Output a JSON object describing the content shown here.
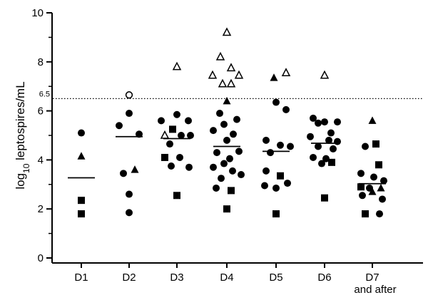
{
  "chart_data": {
    "type": "scatter",
    "title": "",
    "xlabel": "",
    "ylabel": {
      "prefix": "log",
      "subscript": "10",
      "suffix": " leptospires/mL"
    },
    "ylim": [
      0,
      10
    ],
    "yticks": [
      "0",
      "2",
      "4",
      "6",
      "8",
      "10"
    ],
    "categories": [
      "D1",
      "D2",
      "D3",
      "D4",
      "D5",
      "D6",
      "D7"
    ],
    "category_sublabels": [
      "",
      "",
      "",
      "",
      "",
      "",
      "and after"
    ],
    "reference_line": {
      "y": 6.5,
      "label": "6.5",
      "style": "dotted"
    },
    "marker_legend": {
      "circle-filled": "",
      "square-filled": "",
      "triangle-filled": "",
      "triangle-open": "",
      "circle-open": ""
    },
    "medians": [
      3.27,
      4.95,
      4.87,
      4.55,
      4.35,
      4.68,
      3.03
    ],
    "points": [
      {
        "cat": 0,
        "y": 5.1,
        "m": "circle-filled",
        "dx": 0
      },
      {
        "cat": 0,
        "y": 4.15,
        "m": "triangle-filled",
        "dx": 0
      },
      {
        "cat": 0,
        "y": 2.35,
        "m": "square-filled",
        "dx": 0
      },
      {
        "cat": 0,
        "y": 1.8,
        "m": "square-filled",
        "dx": 0
      },
      {
        "cat": 1,
        "y": 6.65,
        "m": "circle-open",
        "dx": 0
      },
      {
        "cat": 1,
        "y": 5.9,
        "m": "circle-filled",
        "dx": 0
      },
      {
        "cat": 1,
        "y": 5.4,
        "m": "circle-filled",
        "dx": -14
      },
      {
        "cat": 1,
        "y": 5.05,
        "m": "circle-filled",
        "dx": 14
      },
      {
        "cat": 1,
        "y": 3.6,
        "m": "triangle-filled",
        "dx": 8
      },
      {
        "cat": 1,
        "y": 3.45,
        "m": "circle-filled",
        "dx": -8
      },
      {
        "cat": 1,
        "y": 2.6,
        "m": "circle-filled",
        "dx": 0
      },
      {
        "cat": 1,
        "y": 1.85,
        "m": "circle-filled",
        "dx": 0
      },
      {
        "cat": 2,
        "y": 7.8,
        "m": "triangle-open",
        "dx": 0
      },
      {
        "cat": 2,
        "y": 5.85,
        "m": "circle-filled",
        "dx": 0
      },
      {
        "cat": 2,
        "y": 5.6,
        "m": "circle-filled",
        "dx": -22
      },
      {
        "cat": 2,
        "y": 5.6,
        "m": "circle-filled",
        "dx": 16
      },
      {
        "cat": 2,
        "y": 5.25,
        "m": "square-filled",
        "dx": -6
      },
      {
        "cat": 2,
        "y": 5.0,
        "m": "triangle-open",
        "dx": -17
      },
      {
        "cat": 2,
        "y": 5.0,
        "m": "circle-filled",
        "dx": 6
      },
      {
        "cat": 2,
        "y": 5.0,
        "m": "circle-filled",
        "dx": 19
      },
      {
        "cat": 2,
        "y": 4.65,
        "m": "circle-filled",
        "dx": -10
      },
      {
        "cat": 2,
        "y": 4.1,
        "m": "square-filled",
        "dx": -17
      },
      {
        "cat": 2,
        "y": 4.1,
        "m": "circle-filled",
        "dx": 4
      },
      {
        "cat": 2,
        "y": 3.75,
        "m": "circle-filled",
        "dx": -8
      },
      {
        "cat": 2,
        "y": 3.7,
        "m": "circle-filled",
        "dx": 17
      },
      {
        "cat": 2,
        "y": 2.55,
        "m": "square-filled",
        "dx": 0
      },
      {
        "cat": 3,
        "y": 9.2,
        "m": "triangle-open",
        "dx": 0
      },
      {
        "cat": 3,
        "y": 8.2,
        "m": "triangle-open",
        "dx": -9
      },
      {
        "cat": 3,
        "y": 7.75,
        "m": "triangle-open",
        "dx": 6
      },
      {
        "cat": 3,
        "y": 7.45,
        "m": "triangle-open",
        "dx": -20
      },
      {
        "cat": 3,
        "y": 7.45,
        "m": "triangle-open",
        "dx": 17
      },
      {
        "cat": 3,
        "y": 7.1,
        "m": "triangle-open",
        "dx": -6
      },
      {
        "cat": 3,
        "y": 7.1,
        "m": "triangle-open",
        "dx": 6
      },
      {
        "cat": 3,
        "y": 6.4,
        "m": "triangle-filled",
        "dx": 0
      },
      {
        "cat": 3,
        "y": 5.9,
        "m": "circle-filled",
        "dx": -10
      },
      {
        "cat": 3,
        "y": 5.65,
        "m": "circle-filled",
        "dx": 14
      },
      {
        "cat": 3,
        "y": 5.45,
        "m": "circle-filled",
        "dx": -4
      },
      {
        "cat": 3,
        "y": 5.2,
        "m": "circle-filled",
        "dx": -19
      },
      {
        "cat": 3,
        "y": 5.05,
        "m": "circle-filled",
        "dx": 9
      },
      {
        "cat": 3,
        "y": 4.8,
        "m": "circle-filled",
        "dx": 0
      },
      {
        "cat": 3,
        "y": 4.35,
        "m": "circle-filled",
        "dx": 17
      },
      {
        "cat": 3,
        "y": 4.3,
        "m": "circle-filled",
        "dx": -14
      },
      {
        "cat": 3,
        "y": 4.05,
        "m": "circle-filled",
        "dx": 4
      },
      {
        "cat": 3,
        "y": 3.85,
        "m": "circle-filled",
        "dx": -4
      },
      {
        "cat": 3,
        "y": 3.7,
        "m": "circle-filled",
        "dx": -19
      },
      {
        "cat": 3,
        "y": 3.55,
        "m": "circle-filled",
        "dx": 8
      },
      {
        "cat": 3,
        "y": 3.4,
        "m": "circle-filled",
        "dx": 20
      },
      {
        "cat": 3,
        "y": 3.25,
        "m": "circle-filled",
        "dx": -8
      },
      {
        "cat": 3,
        "y": 2.85,
        "m": "circle-filled",
        "dx": -15
      },
      {
        "cat": 3,
        "y": 2.75,
        "m": "square-filled",
        "dx": 6
      },
      {
        "cat": 3,
        "y": 2.0,
        "m": "square-filled",
        "dx": 0
      },
      {
        "cat": 4,
        "y": 7.55,
        "m": "triangle-open",
        "dx": 14
      },
      {
        "cat": 4,
        "y": 7.35,
        "m": "triangle-filled",
        "dx": -3
      },
      {
        "cat": 4,
        "y": 6.35,
        "m": "circle-filled",
        "dx": 0
      },
      {
        "cat": 4,
        "y": 6.05,
        "m": "circle-filled",
        "dx": 14
      },
      {
        "cat": 4,
        "y": 4.8,
        "m": "circle-filled",
        "dx": -14
      },
      {
        "cat": 4,
        "y": 4.6,
        "m": "circle-filled",
        "dx": 6
      },
      {
        "cat": 4,
        "y": 4.55,
        "m": "circle-filled",
        "dx": 20
      },
      {
        "cat": 4,
        "y": 4.3,
        "m": "circle-filled",
        "dx": -8
      },
      {
        "cat": 4,
        "y": 3.55,
        "m": "circle-filled",
        "dx": -14
      },
      {
        "cat": 4,
        "y": 3.35,
        "m": "square-filled",
        "dx": 6
      },
      {
        "cat": 4,
        "y": 3.05,
        "m": "circle-filled",
        "dx": 16
      },
      {
        "cat": 4,
        "y": 2.95,
        "m": "circle-filled",
        "dx": -16
      },
      {
        "cat": 4,
        "y": 2.85,
        "m": "circle-filled",
        "dx": 0
      },
      {
        "cat": 4,
        "y": 1.8,
        "m": "square-filled",
        "dx": 0
      },
      {
        "cat": 5,
        "y": 7.45,
        "m": "triangle-open",
        "dx": 0
      },
      {
        "cat": 5,
        "y": 5.7,
        "m": "circle-filled",
        "dx": -16
      },
      {
        "cat": 5,
        "y": 5.55,
        "m": "circle-filled",
        "dx": 0
      },
      {
        "cat": 5,
        "y": 5.55,
        "m": "circle-filled",
        "dx": 18
      },
      {
        "cat": 5,
        "y": 5.5,
        "m": "circle-filled",
        "dx": -9
      },
      {
        "cat": 5,
        "y": 5.1,
        "m": "circle-filled",
        "dx": 9
      },
      {
        "cat": 5,
        "y": 4.95,
        "m": "circle-filled",
        "dx": -20
      },
      {
        "cat": 5,
        "y": 4.8,
        "m": "circle-filled",
        "dx": 6
      },
      {
        "cat": 5,
        "y": 4.75,
        "m": "circle-filled",
        "dx": 18
      },
      {
        "cat": 5,
        "y": 4.55,
        "m": "circle-filled",
        "dx": -9
      },
      {
        "cat": 5,
        "y": 4.45,
        "m": "circle-filled",
        "dx": 12
      },
      {
        "cat": 5,
        "y": 4.1,
        "m": "circle-filled",
        "dx": -16
      },
      {
        "cat": 5,
        "y": 4.05,
        "m": "circle-filled",
        "dx": 2
      },
      {
        "cat": 5,
        "y": 3.9,
        "m": "square-filled",
        "dx": 10
      },
      {
        "cat": 5,
        "y": 3.85,
        "m": "circle-filled",
        "dx": -4
      },
      {
        "cat": 5,
        "y": 2.45,
        "m": "square-filled",
        "dx": 0
      },
      {
        "cat": 6,
        "y": 5.6,
        "m": "triangle-filled",
        "dx": 0
      },
      {
        "cat": 6,
        "y": 4.65,
        "m": "square-filled",
        "dx": 5
      },
      {
        "cat": 6,
        "y": 4.55,
        "m": "circle-filled",
        "dx": -10
      },
      {
        "cat": 6,
        "y": 3.8,
        "m": "square-filled",
        "dx": 9
      },
      {
        "cat": 6,
        "y": 3.45,
        "m": "circle-filled",
        "dx": -16
      },
      {
        "cat": 6,
        "y": 3.3,
        "m": "circle-filled",
        "dx": 2
      },
      {
        "cat": 6,
        "y": 3.15,
        "m": "circle-filled",
        "dx": 16
      },
      {
        "cat": 6,
        "y": 2.9,
        "m": "square-filled",
        "dx": -16
      },
      {
        "cat": 6,
        "y": 2.85,
        "m": "circle-filled",
        "dx": -4
      },
      {
        "cat": 6,
        "y": 2.85,
        "m": "triangle-filled",
        "dx": 12
      },
      {
        "cat": 6,
        "y": 2.7,
        "m": "triangle-filled",
        "dx": 0
      },
      {
        "cat": 6,
        "y": 2.55,
        "m": "circle-filled",
        "dx": -14
      },
      {
        "cat": 6,
        "y": 2.4,
        "m": "circle-filled",
        "dx": 14
      },
      {
        "cat": 6,
        "y": 1.8,
        "m": "square-filled",
        "dx": -10
      },
      {
        "cat": 6,
        "y": 1.8,
        "m": "circle-filled",
        "dx": 10
      }
    ]
  }
}
